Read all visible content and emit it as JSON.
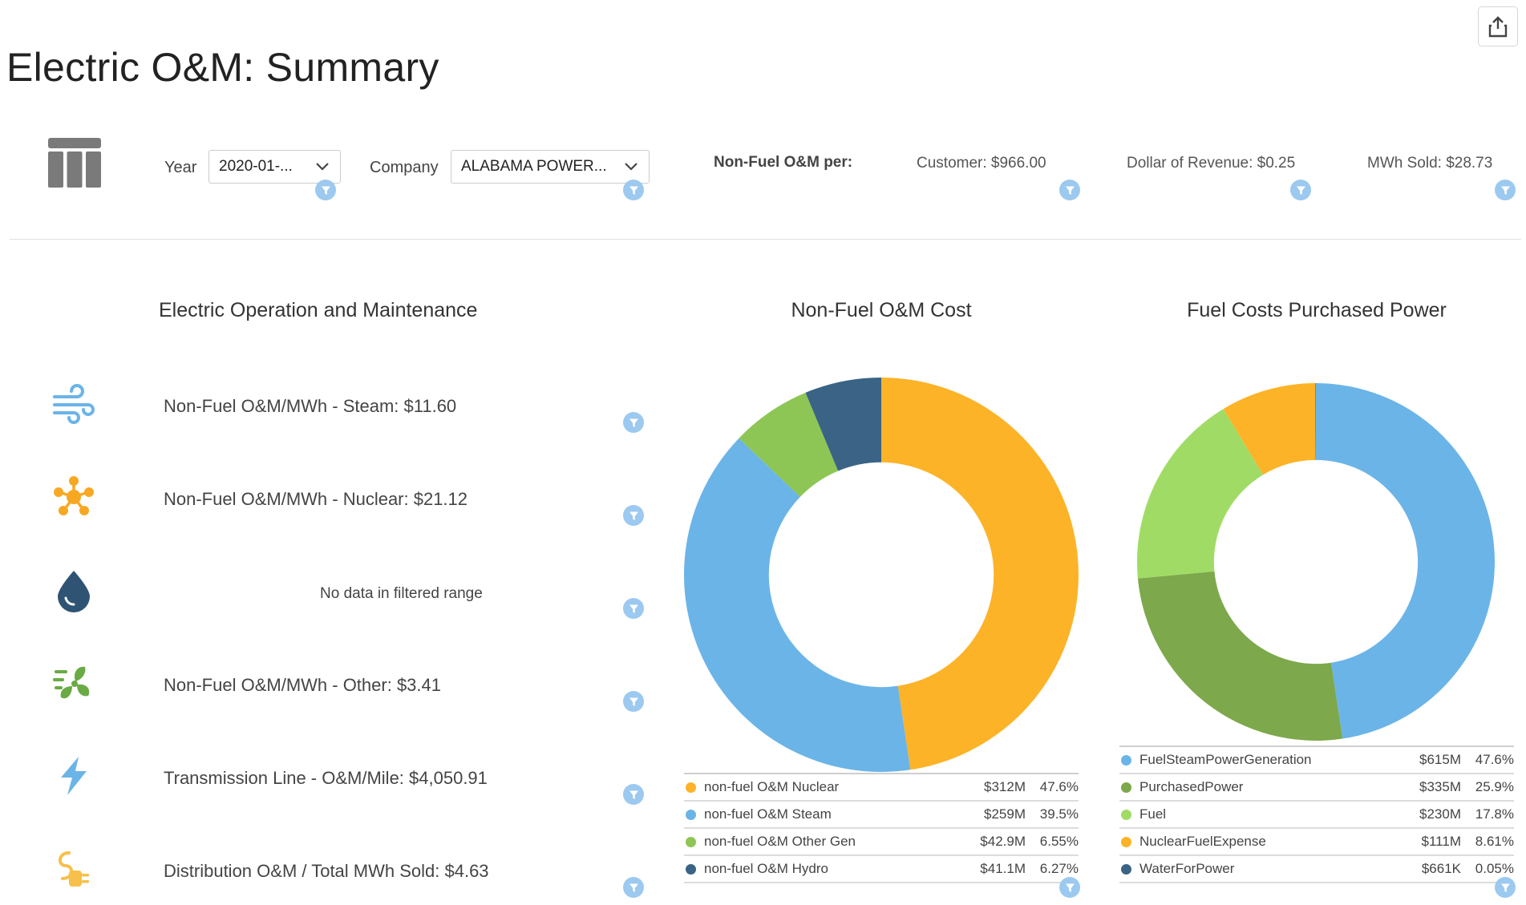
{
  "page": {
    "title": "Electric O&M: Summary"
  },
  "icons": {
    "share": "share-icon",
    "table": "table-icon",
    "filter": "filter-icon",
    "steam": "wind-icon",
    "nuclear": "nuclear-icon",
    "hydro": "water-drop-icon",
    "other": "fan-icon",
    "transmission": "lightning-icon",
    "distribution": "plug-icon"
  },
  "filters": {
    "year": {
      "label": "Year",
      "value": "2020-01-..."
    },
    "company": {
      "label": "Company",
      "value": "ALABAMA POWER..."
    }
  },
  "kpis": {
    "heading": "Non-Fuel O&M per:",
    "customer": "Customer: $966.00",
    "revenue": "Dollar of Revenue: $0.25",
    "mwh": "MWh Sold: $28.73"
  },
  "metrics": {
    "title": "Electric Operation and Maintenance",
    "items": [
      {
        "text": "Non-Fuel O&M/MWh - Steam: $11.60"
      },
      {
        "text": "Non-Fuel O&M/MWh - Nuclear: $21.12"
      },
      {
        "text": "No data in filtered range"
      },
      {
        "text": "Non-Fuel O&M/MWh - Other: $3.41"
      },
      {
        "text": "Transmission Line - O&M/Mile: $4,050.91"
      },
      {
        "text": "Distribution O&M / Total MWh Sold: $4.63"
      }
    ]
  },
  "colors": {
    "orange": "#fdb327",
    "lightblue": "#6bb4e8",
    "green": "#8dc655",
    "darkgreen": "#7da84b",
    "lightgreen": "#a0dc65",
    "navy": "#3a6385",
    "filter": "#9cc9ef",
    "icon_blue": "#6bb4e8",
    "icon_orange": "#f7a823",
    "icon_navy": "#2f5373",
    "icon_green": "#6aaa45"
  },
  "chart_data": [
    {
      "type": "pie",
      "title": "Non-Fuel O&M Cost",
      "categories": [
        "non-fuel O&M Nuclear",
        "non-fuel O&M Steam",
        "non-fuel O&M Other Gen",
        "non-fuel O&M Hydro"
      ],
      "values": [
        47.6,
        39.5,
        6.55,
        6.27
      ],
      "amounts": [
        "$312M",
        "$259M",
        "$42.9M",
        "$41.1M"
      ],
      "percents": [
        "47.6%",
        "39.5%",
        "6.55%",
        "6.27%"
      ],
      "colors": [
        "#fdb327",
        "#6bb4e8",
        "#8dc655",
        "#3a6385"
      ],
      "inner_ratio": 0.57
    },
    {
      "type": "pie",
      "title": "Fuel Costs Purchased Power",
      "categories": [
        "FuelSteamPowerGeneration",
        "PurchasedPower",
        "Fuel",
        "NuclearFuelExpense",
        "WaterForPower"
      ],
      "values": [
        47.6,
        25.9,
        17.8,
        8.61,
        0.05
      ],
      "amounts": [
        "$615M",
        "$335M",
        "$230M",
        "$111M",
        "$661K"
      ],
      "percents": [
        "47.6%",
        "25.9%",
        "17.8%",
        "8.61%",
        "0.05%"
      ],
      "colors": [
        "#6bb4e8",
        "#7da84b",
        "#a0dc65",
        "#fdb327",
        "#3a6385"
      ],
      "inner_ratio": 0.57
    }
  ]
}
